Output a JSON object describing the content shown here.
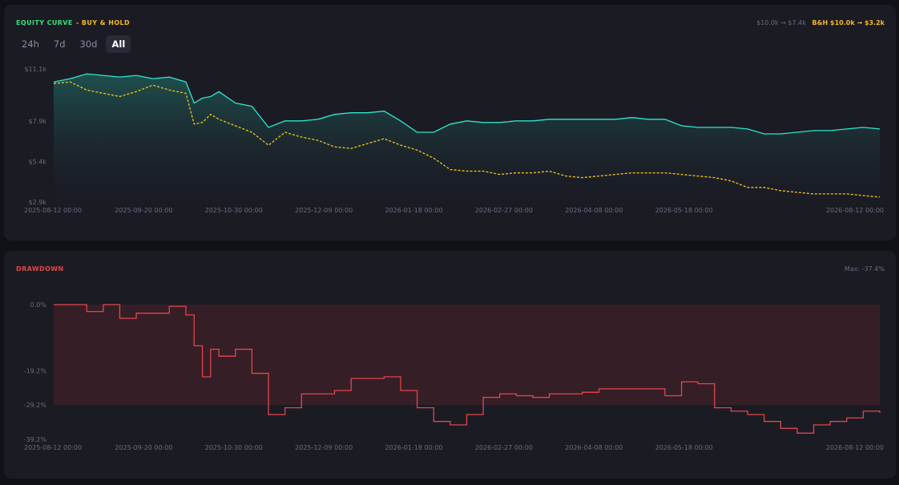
{
  "equity": {
    "title": "EQUITY CURVE",
    "legend_bh": "- BUY & HOLD",
    "summary_strategy": "$10.0k → $7.4k",
    "summary_bh": "B&H $10.0k → $3.2k",
    "tabs": [
      {
        "label": "24h",
        "active": false
      },
      {
        "label": "7d",
        "active": false
      },
      {
        "label": "30d",
        "active": false
      },
      {
        "label": "All",
        "active": true
      }
    ]
  },
  "drawdown": {
    "title": "DRAWDOWN",
    "summary": "Max: -37.4%"
  },
  "colors": {
    "strategy": "#2ee6d0",
    "bh": "#f5c518",
    "drawdown": "#e0474c",
    "equity_title": "#35e07a",
    "bh_title": "#f5b92a",
    "drawdown_title": "#e0474c"
  },
  "chart_data": [
    {
      "type": "area",
      "name": "equity-curve",
      "x_tick_labels": [
        "2025-08-12 00:00",
        "2025-09-20 00:00",
        "2025-10-30 00:00",
        "2025-12-09 00:00",
        "2026-01-18 00:00",
        "2026-02-27 00:00",
        "2026-04-08 00:00",
        "2026-05-18 00:00",
        "2026-08-12 00:00"
      ],
      "y_tick_labels": [
        "$11.1k",
        "$7.9k",
        "$5.4k",
        "$2.9k"
      ],
      "ylim": [
        2.9,
        11.1
      ],
      "y_ticks": [
        11.1,
        7.9,
        5.4,
        2.9
      ],
      "x": [
        0,
        0.02,
        0.04,
        0.06,
        0.08,
        0.1,
        0.12,
        0.14,
        0.16,
        0.17,
        0.18,
        0.19,
        0.2,
        0.22,
        0.24,
        0.26,
        0.28,
        0.3,
        0.32,
        0.34,
        0.36,
        0.38,
        0.4,
        0.42,
        0.44,
        0.46,
        0.48,
        0.5,
        0.52,
        0.54,
        0.56,
        0.58,
        0.6,
        0.62,
        0.64,
        0.66,
        0.68,
        0.7,
        0.72,
        0.74,
        0.76,
        0.78,
        0.8,
        0.82,
        0.84,
        0.86,
        0.88,
        0.9,
        0.92,
        0.94,
        0.96,
        0.98,
        1.0
      ],
      "series": [
        {
          "values": [
            10.3,
            10.5,
            10.8,
            10.7,
            10.6,
            10.7,
            10.5,
            10.6,
            10.3,
            9.0,
            9.3,
            9.4,
            9.7,
            9.0,
            8.8,
            7.5,
            7.9,
            7.9,
            8.0,
            8.3,
            8.4,
            8.4,
            8.5,
            7.9,
            7.2,
            7.2,
            7.7,
            7.9,
            7.8,
            7.8,
            7.9,
            7.9,
            8.0,
            8.0,
            8.0,
            8.0,
            8.0,
            8.1,
            8.0,
            8.0,
            7.6,
            7.5,
            7.5,
            7.5,
            7.4,
            7.1,
            7.1,
            7.2,
            7.3,
            7.3,
            7.4,
            7.5,
            7.4
          ]
        },
        {
          "values": [
            10.2,
            10.3,
            9.8,
            9.6,
            9.4,
            9.7,
            10.1,
            9.8,
            9.6,
            7.7,
            7.8,
            8.3,
            8.0,
            7.6,
            7.2,
            6.4,
            7.2,
            6.9,
            6.7,
            6.3,
            6.2,
            6.5,
            6.8,
            6.4,
            6.1,
            5.6,
            4.9,
            4.8,
            4.8,
            4.6,
            4.7,
            4.7,
            4.8,
            4.5,
            4.4,
            4.5,
            4.6,
            4.7,
            4.7,
            4.7,
            4.6,
            4.5,
            4.4,
            4.2,
            3.8,
            3.8,
            3.6,
            3.5,
            3.4,
            3.4,
            3.4,
            3.3,
            3.2
          ]
        }
      ]
    },
    {
      "type": "area",
      "name": "drawdown",
      "x_tick_labels": [
        "2025-08-12 00:00",
        "2025-09-20 00:00",
        "2025-10-30 00:00",
        "2025-12-09 00:00",
        "2026-01-18 00:00",
        "2026-02-27 00:00",
        "2026-04-08 00:00",
        "2026-05-18 00:00",
        "2026-08-12 00:00"
      ],
      "y_tick_labels": [
        "0.0%",
        "-19.2%",
        "-29.2%",
        "-39.2%"
      ],
      "ylim": [
        -39.2,
        0
      ],
      "y_ticks": [
        0.0,
        -19.2,
        -29.2,
        -39.2
      ],
      "x": [
        0,
        0.02,
        0.04,
        0.06,
        0.08,
        0.1,
        0.12,
        0.14,
        0.16,
        0.17,
        0.18,
        0.19,
        0.2,
        0.22,
        0.24,
        0.26,
        0.28,
        0.3,
        0.32,
        0.34,
        0.36,
        0.38,
        0.4,
        0.42,
        0.44,
        0.46,
        0.48,
        0.5,
        0.52,
        0.54,
        0.56,
        0.58,
        0.6,
        0.62,
        0.64,
        0.66,
        0.68,
        0.7,
        0.72,
        0.74,
        0.76,
        0.78,
        0.8,
        0.82,
        0.84,
        0.86,
        0.88,
        0.9,
        0.92,
        0.94,
        0.96,
        0.98,
        1.0
      ],
      "values": [
        0,
        0,
        -2,
        0,
        -4,
        -2.5,
        -2.5,
        -0.5,
        -3,
        -12,
        -21,
        -13,
        -15,
        -13,
        -20,
        -32,
        -30,
        -26,
        -26,
        -25,
        -21.5,
        -21.5,
        -21,
        -25,
        -30,
        -34,
        -35,
        -32,
        -27,
        -26,
        -26.5,
        -27,
        -26,
        -26,
        -25.5,
        -24.5,
        -24.5,
        -24.5,
        -24.5,
        -26.5,
        -22.5,
        -23,
        -30,
        -31,
        -32,
        -34,
        -36,
        -37.4,
        -35,
        -34,
        -33,
        -31,
        -31.5
      ]
    }
  ]
}
